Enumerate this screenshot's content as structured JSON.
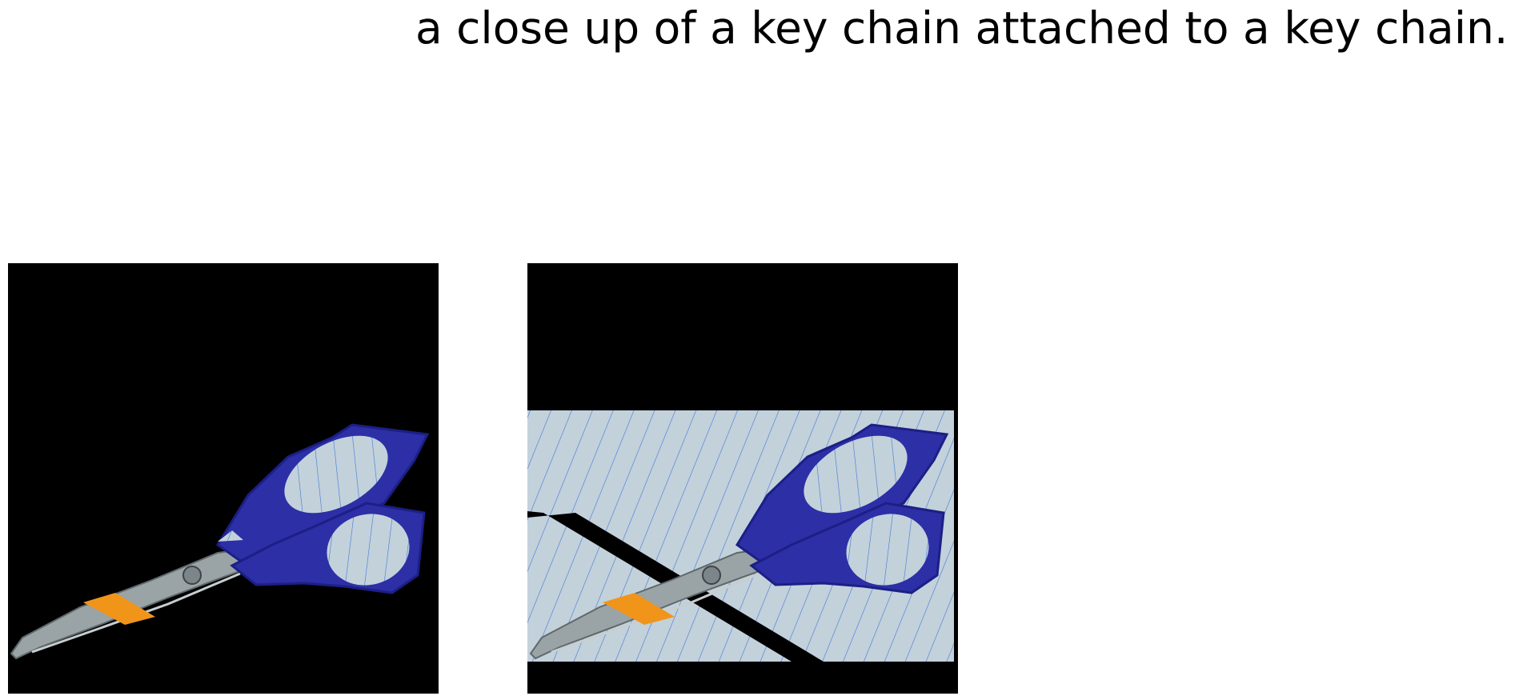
{
  "caption": "a close up of a key chain attached to a key chain.",
  "images": [
    {
      "label": "scissors-cutout-masked"
    },
    {
      "label": "scissors-on-lined-paper"
    }
  ],
  "colors": {
    "background": "#000000",
    "handle": "#2c2fa6",
    "handle_shade": "#1c1f85",
    "blade": "#9aa3a6",
    "blade_dark": "#5f686b",
    "tape": "#f0951a",
    "paper": "#c3d1db",
    "paper_line": "#3f78d4",
    "page": "#ffffff"
  }
}
